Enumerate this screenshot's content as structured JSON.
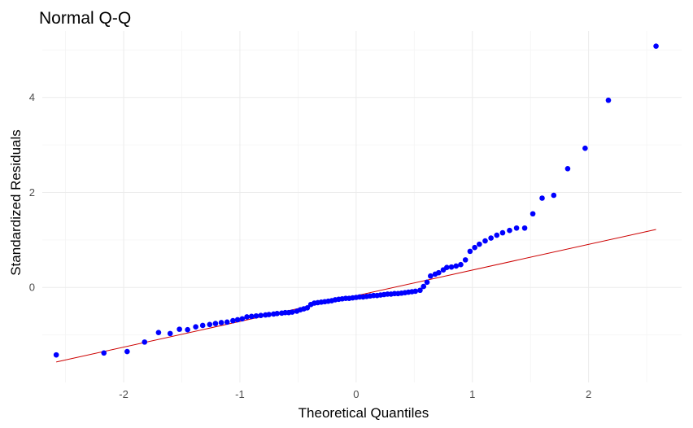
{
  "chart_data": {
    "type": "scatter",
    "title": "Normal Q-Q",
    "xlabel": "Theoretical Quantiles",
    "ylabel": "Standardized Residuals",
    "xlim": [
      -2.7,
      2.8
    ],
    "ylim": [
      -2.0,
      5.4
    ],
    "x_ticks": [
      -2,
      -1,
      0,
      1,
      2
    ],
    "x_tick_labels": [
      "-2",
      "-1",
      "0",
      "1",
      "2"
    ],
    "y_ticks": [
      0,
      2,
      4
    ],
    "y_tick_labels": [
      "0",
      "2",
      "4"
    ],
    "grid": true,
    "point_color": "#0000ff",
    "line_color": "#cc0000",
    "reference_line": {
      "x": [
        -2.58,
        2.58
      ],
      "y": [
        -1.57,
        1.22
      ]
    },
    "points": {
      "x": [
        -2.58,
        -2.17,
        -1.97,
        -1.82,
        -1.7,
        -1.6,
        -1.52,
        -1.45,
        -1.38,
        -1.32,
        -1.26,
        -1.21,
        -1.16,
        -1.11,
        -1.06,
        -1.02,
        -0.98,
        -0.94,
        -0.9,
        -0.86,
        -0.82,
        -0.78,
        -0.75,
        -0.71,
        -0.68,
        -0.64,
        -0.61,
        -0.58,
        -0.55,
        -0.51,
        -0.48,
        -0.45,
        -0.42,
        -0.39,
        -0.36,
        -0.33,
        -0.3,
        -0.27,
        -0.24,
        -0.21,
        -0.18,
        -0.15,
        -0.12,
        -0.09,
        -0.06,
        -0.03,
        0.0,
        0.03,
        0.06,
        0.09,
        0.12,
        0.15,
        0.18,
        0.21,
        0.24,
        0.27,
        0.3,
        0.33,
        0.36,
        0.39,
        0.42,
        0.45,
        0.48,
        0.51,
        0.55,
        0.58,
        0.61,
        0.64,
        0.68,
        0.71,
        0.75,
        0.78,
        0.82,
        0.86,
        0.9,
        0.94,
        0.98,
        1.02,
        1.06,
        1.11,
        1.16,
        1.21,
        1.26,
        1.32,
        1.38,
        1.45,
        1.52,
        1.6,
        1.7,
        1.82,
        1.97,
        2.17,
        2.58
      ],
      "y": [
        -1.42,
        -1.38,
        -1.35,
        -1.15,
        -0.95,
        -0.97,
        -0.88,
        -0.89,
        -0.83,
        -0.8,
        -0.78,
        -0.76,
        -0.74,
        -0.73,
        -0.7,
        -0.68,
        -0.66,
        -0.62,
        -0.61,
        -0.6,
        -0.59,
        -0.58,
        -0.57,
        -0.56,
        -0.55,
        -0.54,
        -0.53,
        -0.53,
        -0.52,
        -0.5,
        -0.47,
        -0.45,
        -0.43,
        -0.36,
        -0.33,
        -0.32,
        -0.31,
        -0.3,
        -0.29,
        -0.28,
        -0.26,
        -0.25,
        -0.24,
        -0.23,
        -0.23,
        -0.22,
        -0.21,
        -0.2,
        -0.2,
        -0.19,
        -0.18,
        -0.17,
        -0.17,
        -0.16,
        -0.15,
        -0.14,
        -0.14,
        -0.13,
        -0.13,
        -0.12,
        -0.11,
        -0.1,
        -0.09,
        -0.08,
        -0.06,
        0.02,
        0.11,
        0.24,
        0.28,
        0.31,
        0.37,
        0.42,
        0.43,
        0.45,
        0.48,
        0.58,
        0.76,
        0.84,
        0.91,
        0.98,
        1.04,
        1.1,
        1.15,
        1.2,
        1.25,
        1.25,
        1.55,
        1.88,
        1.94,
        2.5,
        2.93,
        3.94,
        5.08
      ]
    }
  }
}
